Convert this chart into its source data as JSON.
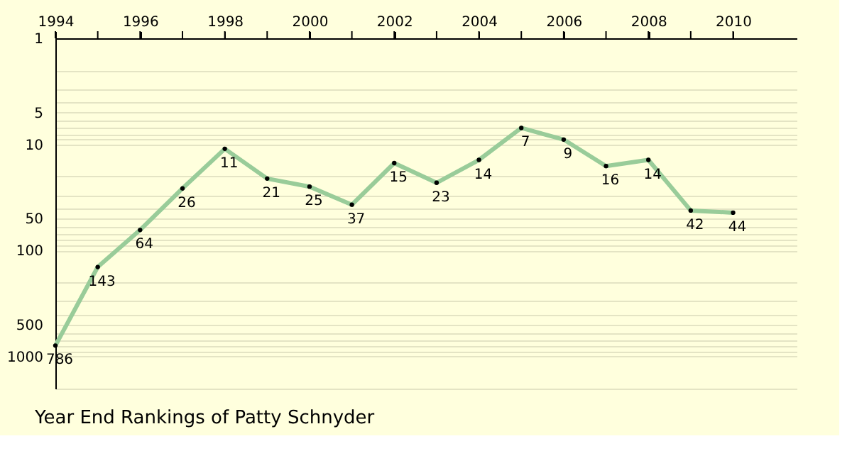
{
  "chart_data": {
    "type": "line",
    "title": "Year End Rankings of  Patty Schnyder",
    "x": [
      1994,
      1995,
      1996,
      1997,
      1998,
      1999,
      2000,
      2001,
      2002,
      2003,
      2004,
      2005,
      2006,
      2007,
      2008,
      2009,
      2010
    ],
    "series": [
      {
        "color": "#99cc99",
        "values": [
          786,
          143,
          64,
          26,
          11,
          21,
          25,
          37,
          15,
          23,
          14,
          7,
          9,
          16,
          14,
          42,
          44
        ]
      }
    ],
    "data_labels": true,
    "marker": "circle",
    "log": "y",
    "grid": "y",
    "xlim": [
      1994,
      2011.5
    ],
    "xticks": [
      1994,
      {
        "value": 1995,
        "label": null
      },
      1996,
      {
        "value": 1997,
        "label": null
      },
      1998,
      {
        "value": 1999,
        "label": null
      },
      2000,
      {
        "value": 2001,
        "label": null
      },
      2002,
      {
        "value": 2003,
        "label": null
      },
      2004,
      {
        "value": 2005,
        "label": null
      },
      2006,
      {
        "value": 2007,
        "label": null
      },
      2008,
      {
        "value": 2009,
        "label": null
      },
      2010
    ],
    "ylim": [
      2000,
      1
    ],
    "yticks": [
      1,
      {
        "value": 2,
        "label": null
      },
      {
        "value": 3,
        "label": null
      },
      {
        "value": 4,
        "label": null
      },
      5,
      {
        "value": 6,
        "label": null
      },
      {
        "value": 7,
        "label": null
      },
      {
        "value": 8,
        "label": null
      },
      {
        "value": 9,
        "label": null
      },
      10,
      {
        "value": 20,
        "label": null
      },
      {
        "value": 30,
        "label": null
      },
      {
        "value": 40,
        "label": null
      },
      50,
      {
        "value": 60,
        "label": null
      },
      {
        "value": 70,
        "label": null
      },
      {
        "value": 80,
        "label": null
      },
      {
        "value": 90,
        "label": null
      },
      100,
      {
        "value": 200,
        "label": null
      },
      {
        "value": 300,
        "label": null
      },
      {
        "value": 400,
        "label": null
      },
      500,
      {
        "value": 600,
        "label": null
      },
      {
        "value": 700,
        "label": null
      },
      {
        "value": 800,
        "label": null
      },
      {
        "value": 900,
        "label": null
      },
      1000,
      {
        "value": 2000,
        "label": null
      }
    ]
  }
}
